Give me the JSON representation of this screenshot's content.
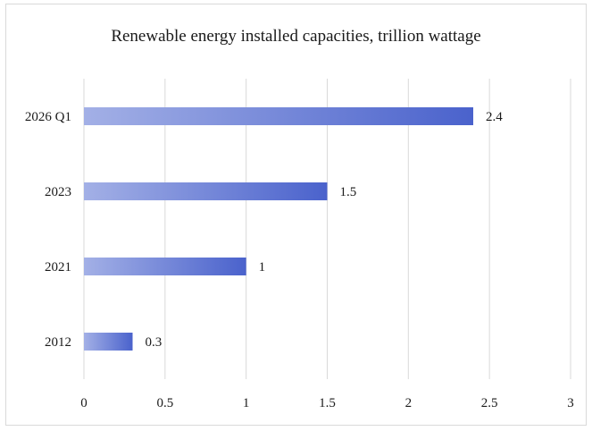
{
  "chart_data": {
    "type": "bar",
    "orientation": "horizontal",
    "title": "Renewable energy installed capacities, trillion wattage",
    "xlabel": "",
    "ylabel": "",
    "categories": [
      "2026 Q1",
      "2023",
      "2021",
      "2012"
    ],
    "values": [
      2.4,
      1.5,
      1,
      0.3
    ],
    "xlim": [
      0,
      3
    ],
    "xticks": [
      "0",
      "0.5",
      "1",
      "1.5",
      "2",
      "2.5",
      "3"
    ],
    "data_labels": [
      "2.4",
      "1.5",
      "1",
      "0.3"
    ],
    "grid": true,
    "legend": "none",
    "colors": {
      "bar_start": "#a3b0e6",
      "bar_end": "#4a62cc",
      "grid": "#d9d9d9"
    }
  }
}
